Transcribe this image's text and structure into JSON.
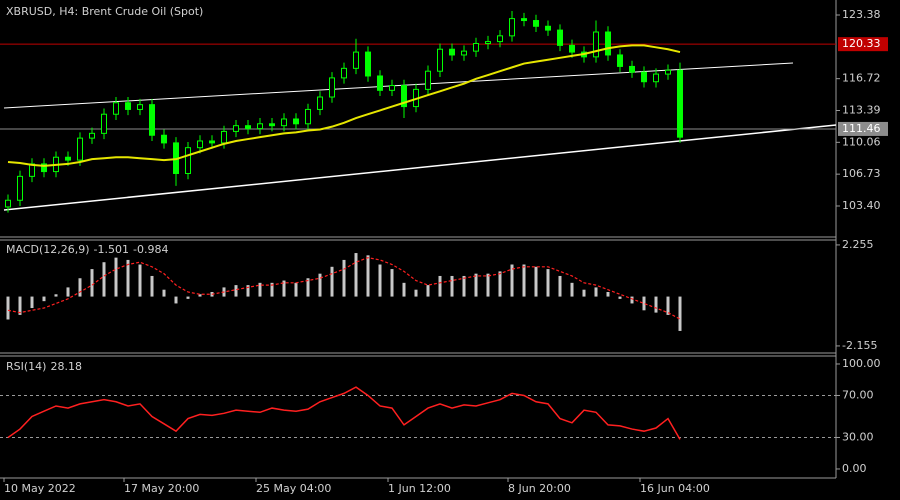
{
  "chart_data": [
    {
      "type": "candlestick",
      "title": "XBRUSD, H4:  Brent Crude Oil (Spot)",
      "color": "#00ff00",
      "ma_color": "#e6e600",
      "open": [
        103.3,
        104.0,
        106.5,
        107.8,
        107.0,
        108.5,
        108.2,
        110.5,
        111.0,
        113.0,
        114.2,
        113.5,
        114.0,
        110.8,
        110.0,
        106.8,
        109.5,
        110.2,
        110.0,
        111.2,
        111.8,
        111.5,
        112.0,
        111.8,
        112.5,
        112.0,
        113.5,
        114.8,
        116.8,
        117.8,
        119.5,
        117.0,
        115.5,
        116.0,
        113.8,
        115.6,
        117.5,
        119.8,
        119.2,
        119.6,
        120.4,
        120.6,
        121.2,
        123.0,
        122.8,
        122.2,
        121.8,
        120.2,
        119.5,
        119.0,
        121.6,
        119.2,
        118.0,
        117.4,
        116.4,
        117.2,
        117.6
      ],
      "high": [
        104.6,
        107.1,
        108.4,
        108.4,
        109.1,
        109.1,
        111.1,
        111.6,
        113.6,
        114.8,
        114.8,
        114.6,
        114.6,
        111.4,
        110.6,
        110.1,
        110.8,
        110.8,
        111.8,
        112.4,
        112.4,
        112.6,
        112.6,
        113.1,
        113.1,
        114.1,
        115.4,
        117.4,
        118.4,
        120.9,
        120.1,
        117.6,
        116.6,
        116.6,
        116.2,
        118.1,
        120.4,
        120.4,
        120.2,
        121.0,
        121.2,
        121.8,
        123.8,
        123.6,
        123.4,
        122.8,
        122.4,
        120.8,
        120.1,
        122.8,
        122.2,
        119.8,
        118.6,
        118.0,
        117.8,
        118.2,
        118.4
      ],
      "low": [
        102.7,
        103.4,
        105.9,
        106.4,
        106.4,
        107.6,
        107.6,
        109.9,
        110.4,
        112.4,
        112.9,
        112.9,
        110.2,
        109.4,
        105.5,
        106.2,
        108.9,
        109.4,
        109.4,
        110.6,
        110.9,
        110.9,
        111.2,
        111.2,
        111.4,
        111.4,
        112.9,
        114.2,
        116.2,
        117.2,
        116.4,
        114.9,
        114.9,
        112.6,
        113.2,
        115.0,
        116.9,
        118.6,
        118.6,
        119.0,
        119.8,
        120.0,
        120.6,
        122.2,
        121.6,
        121.2,
        119.6,
        118.9,
        118.4,
        118.4,
        118.6,
        117.4,
        116.8,
        115.8,
        115.8,
        116.6,
        110.0
      ],
      "close": [
        104.0,
        106.5,
        107.8,
        107.0,
        108.5,
        108.2,
        110.5,
        111.0,
        113.0,
        114.2,
        113.5,
        114.0,
        110.8,
        110.0,
        106.8,
        109.5,
        110.2,
        110.0,
        111.2,
        111.8,
        111.5,
        112.0,
        111.8,
        112.5,
        112.0,
        113.5,
        114.8,
        116.8,
        117.8,
        119.5,
        117.0,
        115.5,
        116.0,
        113.8,
        115.6,
        117.5,
        119.8,
        119.2,
        119.6,
        120.4,
        120.6,
        121.2,
        123.0,
        122.8,
        122.2,
        121.8,
        120.2,
        119.5,
        119.0,
        121.6,
        119.2,
        118.0,
        117.4,
        116.4,
        117.2,
        117.6,
        110.6
      ],
      "ma": [
        108.0,
        107.9,
        107.7,
        107.6,
        107.7,
        107.8,
        108.0,
        108.3,
        108.4,
        108.5,
        108.5,
        108.4,
        108.3,
        108.2,
        108.3,
        108.7,
        109.1,
        109.5,
        109.9,
        110.2,
        110.4,
        110.6,
        110.8,
        111.0,
        111.1,
        111.3,
        111.4,
        111.7,
        112.1,
        112.6,
        113.0,
        113.4,
        113.8,
        114.2,
        114.6,
        115.0,
        115.4,
        115.8,
        116.2,
        116.7,
        117.1,
        117.5,
        117.9,
        118.3,
        118.5,
        118.7,
        118.9,
        119.1,
        119.3,
        119.6,
        119.9,
        120.1,
        120.2,
        120.2,
        120.0,
        119.8,
        119.5
      ],
      "ylim": [
        100.26,
        124.74
      ],
      "yticks": [
        123.38,
        116.72,
        113.39,
        110.06,
        106.73,
        {
          "value": 103.4,
          "label": "103.40"
        }
      ],
      "hlines": [
        {
          "value": 120.33,
          "color": "#c00000"
        },
        {
          "value": 111.46,
          "color": "#8c8c8c"
        }
      ]
    },
    {
      "type": "macd",
      "title": "MACD(12,26,9)",
      "color": "#c8c8c8",
      "signal_color": "#ff2020",
      "values": [
        -1.0,
        -0.8,
        -0.5,
        -0.2,
        0.1,
        0.4,
        0.8,
        1.2,
        1.5,
        1.7,
        1.6,
        1.4,
        0.9,
        0.3,
        -0.3,
        -0.1,
        0.1,
        0.2,
        0.4,
        0.5,
        0.5,
        0.6,
        0.6,
        0.7,
        0.6,
        0.8,
        1.0,
        1.3,
        1.6,
        1.9,
        1.8,
        1.4,
        1.2,
        0.6,
        0.3,
        0.5,
        0.9,
        0.9,
        0.9,
        1.0,
        1.0,
        1.1,
        1.4,
        1.4,
        1.3,
        1.2,
        0.9,
        0.6,
        0.3,
        0.4,
        0.2,
        -0.1,
        -0.3,
        -0.6,
        -0.7,
        -0.8,
        -1.501
      ],
      "signal": [
        -0.6,
        -0.7,
        -0.6,
        -0.5,
        -0.3,
        -0.1,
        0.2,
        0.5,
        0.9,
        1.2,
        1.4,
        1.5,
        1.3,
        1.0,
        0.5,
        0.2,
        0.1,
        0.1,
        0.2,
        0.3,
        0.4,
        0.5,
        0.5,
        0.6,
        0.6,
        0.7,
        0.8,
        1.0,
        1.2,
        1.5,
        1.7,
        1.6,
        1.4,
        1.1,
        0.7,
        0.5,
        0.6,
        0.7,
        0.8,
        0.9,
        0.9,
        1.0,
        1.2,
        1.3,
        1.3,
        1.3,
        1.1,
        0.9,
        0.6,
        0.5,
        0.3,
        0.1,
        -0.1,
        -0.3,
        -0.5,
        -0.7,
        -0.984
      ],
      "ylim": [
        -2.42,
        2.47
      ],
      "yticks": [
        2.255,
        -2.155
      ]
    },
    {
      "type": "line",
      "title": "RSI(14)",
      "color": "#ff2020",
      "values": [
        30,
        38,
        50,
        55,
        60,
        58,
        62,
        64,
        66,
        64,
        60,
        62,
        50,
        43,
        36,
        48,
        52,
        51,
        53,
        56,
        55,
        54,
        58,
        56,
        55,
        57,
        64,
        68,
        72,
        78,
        70,
        60,
        58,
        42,
        50,
        58,
        62,
        58,
        61,
        60,
        63,
        66,
        72,
        70,
        64,
        62,
        48,
        44,
        56,
        54,
        42,
        41,
        38,
        36,
        39,
        48,
        28.18
      ],
      "ylim": [
        -8.6,
        107.6
      ],
      "yticks": [
        {
          "value": 100,
          "label": "100.00"
        },
        {
          "value": 70,
          "label": "70.00"
        },
        {
          "value": 30,
          "label": "30.00"
        },
        {
          "value": 0,
          "label": "0.00"
        }
      ],
      "levels": [
        70,
        30
      ],
      "categories": [
        "10 May 2022",
        null,
        null,
        null,
        null,
        null,
        null,
        null,
        null,
        null,
        "17 May 20:00",
        null,
        null,
        null,
        null,
        null,
        null,
        null,
        null,
        null,
        null,
        "25 May 04:00",
        null,
        null,
        null,
        null,
        null,
        null,
        null,
        null,
        null,
        null,
        "1 Jun 12:00",
        null,
        null,
        null,
        null,
        null,
        null,
        null,
        null,
        null,
        "8 Jun 20:00",
        null,
        null,
        null,
        null,
        null,
        null,
        null,
        null,
        null,
        null,
        "16 Jun 04:00",
        null,
        null,
        null
      ]
    }
  ]
}
